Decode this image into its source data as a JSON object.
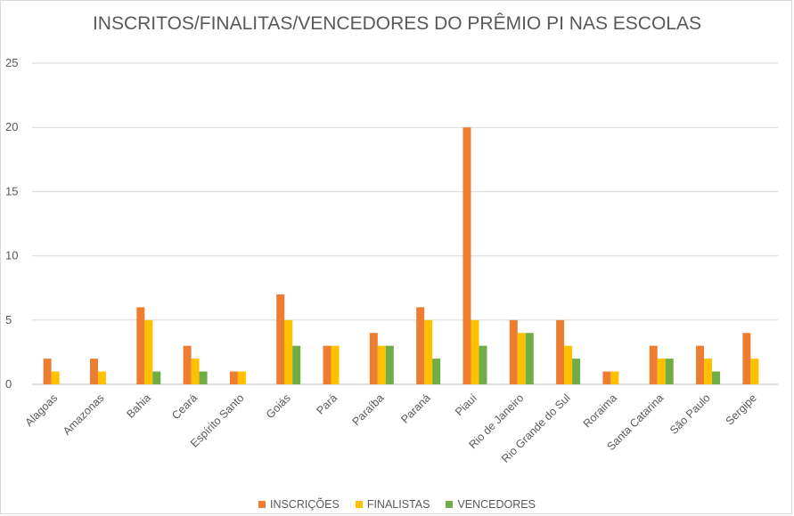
{
  "chart_data": {
    "type": "bar",
    "title": "INSCRITOS/FINALITAS/VENCEDORES DO PRÊMIO PI NAS ESCOLAS",
    "xlabel": "",
    "ylabel": "",
    "ylim": [
      0,
      25
    ],
    "yticks": [
      0,
      5,
      10,
      15,
      20,
      25
    ],
    "grid": true,
    "legend_position": "bottom",
    "categories": [
      "Alagoas",
      "Amazonas",
      "Bahia",
      "Ceará",
      "Espírito Santo",
      "Goiás",
      "Pará",
      "Paraíba",
      "Paraná",
      "Piauí",
      "Rio de Janeiro",
      "Rio Grande do Sul",
      "Roraima",
      "Santa Catarina",
      "São Paulo",
      "Sergipe"
    ],
    "series": [
      {
        "name": "INSCRIÇÕES",
        "color": "#ed7d31",
        "values": [
          2,
          2,
          6,
          3,
          1,
          7,
          3,
          4,
          6,
          20,
          5,
          5,
          1,
          3,
          3,
          4
        ]
      },
      {
        "name": "FINALISTAS",
        "color": "#ffc000",
        "values": [
          1,
          1,
          5,
          2,
          1,
          5,
          3,
          3,
          5,
          5,
          4,
          3,
          1,
          2,
          2,
          2
        ]
      },
      {
        "name": "VENCEDORES",
        "color": "#70ad47",
        "values": [
          0,
          0,
          1,
          1,
          0,
          3,
          0,
          3,
          2,
          3,
          4,
          2,
          0,
          2,
          1,
          0
        ]
      }
    ]
  }
}
